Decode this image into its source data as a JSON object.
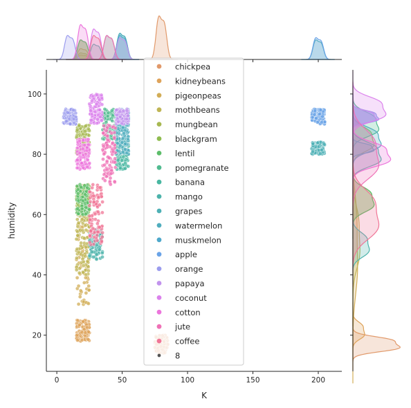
{
  "chart_data": {
    "type": "scatter",
    "title": "",
    "xlabel": "K",
    "ylabel": "humidity",
    "xlim": [
      -8,
      218
    ],
    "ylim": [
      8,
      108
    ],
    "xticks": [
      0,
      50,
      100,
      150,
      200
    ],
    "yticks": [
      20,
      40,
      60,
      80,
      100
    ],
    "grid": false,
    "legend_placement": "center",
    "marginals": {
      "top": "kde of K per class",
      "right": "kde of humidity per class"
    },
    "size_legend": {
      "label": "8"
    },
    "series": [
      {
        "name": "chickpea",
        "color": "#e1996a",
        "k": [
          75,
          85
        ],
        "humidity": [
          14,
          20
        ],
        "n": 100,
        "peak": 1.0
      },
      {
        "name": "kidneybeans",
        "color": "#dea35a",
        "k": [
          15,
          25
        ],
        "humidity": [
          18,
          25
        ],
        "n": 100,
        "peak": 0.25
      },
      {
        "name": "pigeonpeas",
        "color": "#d2ad57",
        "k": [
          15,
          25
        ],
        "humidity": [
          30,
          70
        ],
        "n": 100,
        "peak": 0.1
      },
      {
        "name": "mothbeans",
        "color": "#bfb555",
        "k": [
          15,
          25
        ],
        "humidity": [
          40,
          65
        ],
        "n": 100,
        "peak": 0.15
      },
      {
        "name": "mungbean",
        "color": "#a7b851",
        "k": [
          15,
          25
        ],
        "humidity": [
          80,
          90
        ],
        "n": 100,
        "peak": 0.45
      },
      {
        "name": "blackgram",
        "color": "#8fbc4f",
        "k": [
          15,
          25
        ],
        "humidity": [
          60,
          70
        ],
        "n": 100,
        "peak": 0.45
      },
      {
        "name": "lentil",
        "color": "#5dbd6a",
        "k": [
          15,
          25
        ],
        "humidity": [
          60,
          70
        ],
        "n": 100,
        "peak": 0.45
      },
      {
        "name": "pomegranate",
        "color": "#51bb90",
        "k": [
          35,
          45
        ],
        "humidity": [
          85,
          95
        ],
        "n": 100,
        "peak": 0.55
      },
      {
        "name": "banana",
        "color": "#49b7a1",
        "k": [
          45,
          55
        ],
        "humidity": [
          75,
          85
        ],
        "n": 100,
        "peak": 0.6
      },
      {
        "name": "mango",
        "color": "#4cb3ab",
        "k": [
          25,
          35
        ],
        "humidity": [
          45,
          55
        ],
        "n": 100,
        "peak": 0.35
      },
      {
        "name": "grapes",
        "color": "#4eb0b5",
        "k": [
          195,
          205
        ],
        "humidity": [
          80,
          84
        ],
        "n": 100,
        "peak": 0.45
      },
      {
        "name": "watermelon",
        "color": "#50adbe",
        "k": [
          45,
          55
        ],
        "humidity": [
          80,
          90
        ],
        "n": 100,
        "peak": 0.6
      },
      {
        "name": "muskmelon",
        "color": "#4ea8cb",
        "k": [
          45,
          55
        ],
        "humidity": [
          90,
          95
        ],
        "n": 100,
        "peak": 0.55
      },
      {
        "name": "apple",
        "color": "#6aa3e7",
        "k": [
          195,
          205
        ],
        "humidity": [
          90,
          95
        ],
        "n": 100,
        "peak": 0.5
      },
      {
        "name": "orange",
        "color": "#9b9cee",
        "k": [
          5,
          15
        ],
        "humidity": [
          90,
          95
        ],
        "n": 100,
        "peak": 0.55
      },
      {
        "name": "papaya",
        "color": "#c293ed",
        "k": [
          45,
          55
        ],
        "humidity": [
          90,
          95
        ],
        "n": 100,
        "peak": 0.5
      },
      {
        "name": "coconut",
        "color": "#db82ec",
        "k": [
          25,
          35
        ],
        "humidity": [
          90,
          100
        ],
        "n": 100,
        "peak": 0.7
      },
      {
        "name": "cotton",
        "color": "#ec75dc",
        "k": [
          15,
          25
        ],
        "humidity": [
          75,
          85
        ],
        "n": 100,
        "peak": 0.8
      },
      {
        "name": "jute",
        "color": "#ef71b6",
        "k": [
          35,
          45
        ],
        "humidity": [
          70,
          90
        ],
        "n": 100,
        "peak": 0.55
      },
      {
        "name": "coffee",
        "color": "#f07596",
        "k": [
          25,
          35
        ],
        "humidity": [
          50,
          70
        ],
        "n": 100,
        "peak": 0.55
      }
    ]
  }
}
